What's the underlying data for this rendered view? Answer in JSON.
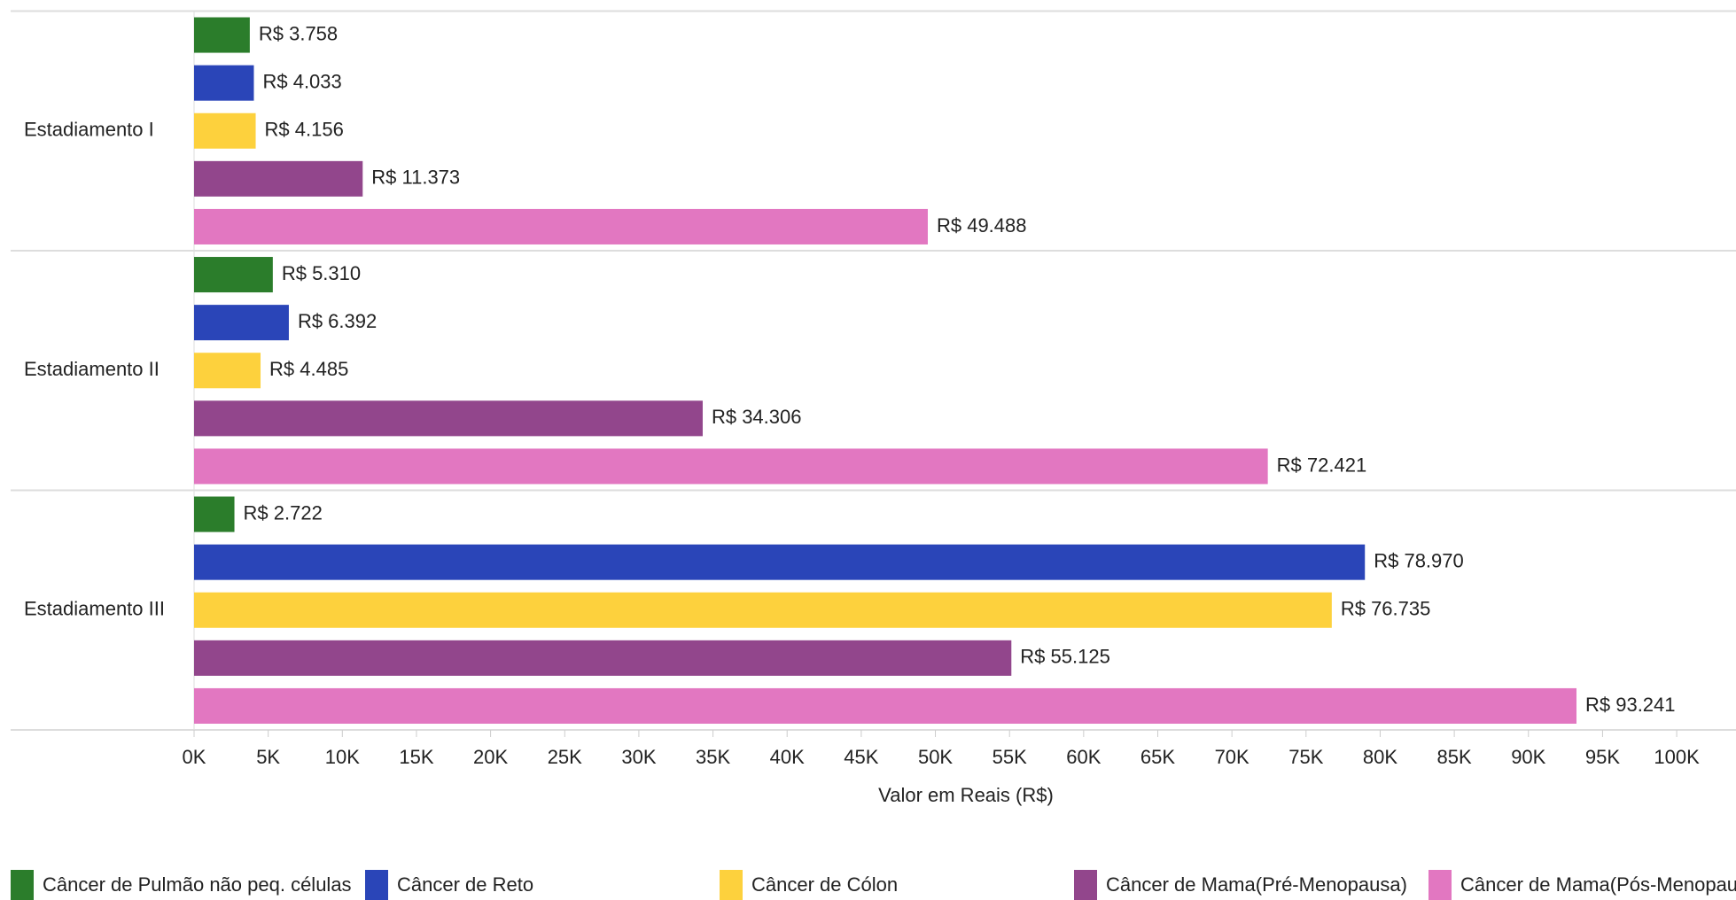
{
  "chart_data": {
    "type": "bar",
    "orientation": "horizontal",
    "categories": [
      "Estadiamento I",
      "Estadiamento II",
      "Estadiamento III"
    ],
    "series": [
      {
        "name": "Câncer de Pulmão não peq. células",
        "color": "#2b7d2b",
        "values": [
          3758,
          5310,
          2722
        ],
        "value_labels": [
          "R$ 3.758",
          "R$ 5.310",
          "R$ 2.722"
        ]
      },
      {
        "name": "Câncer de Reto",
        "color": "#2a45b8",
        "values": [
          4033,
          6392,
          78970
        ],
        "value_labels": [
          "R$ 4.033",
          "R$ 6.392",
          "R$ 78.970"
        ]
      },
      {
        "name": "Câncer de Cólon",
        "color": "#fdd13d",
        "values": [
          4156,
          4485,
          76735
        ],
        "value_labels": [
          "R$ 4.156",
          "R$ 4.485",
          "R$ 76.735"
        ]
      },
      {
        "name": "Câncer de Mama(Pré-Menopausa)",
        "color": "#92468c",
        "values": [
          11373,
          34306,
          55125
        ],
        "value_labels": [
          "R$ 11.373",
          "R$ 34.306",
          "R$ 55.125"
        ]
      },
      {
        "name": "Câncer de Mama(Pós-Menopausa)",
        "color": "#e277c1",
        "values": [
          49488,
          72421,
          93241
        ],
        "value_labels": [
          "R$ 49.488",
          "R$ 72.421",
          "R$ 93.241"
        ]
      }
    ],
    "x_label": "Valor em Reais (R$)",
    "xlim": [
      0,
      104000
    ],
    "xticks": [
      {
        "value": 0,
        "label": "0K"
      },
      {
        "value": 5000,
        "label": "5K"
      },
      {
        "value": 10000,
        "label": "10K"
      },
      {
        "value": 15000,
        "label": "15K"
      },
      {
        "value": 20000,
        "label": "20K"
      },
      {
        "value": 25000,
        "label": "25K"
      },
      {
        "value": 30000,
        "label": "30K"
      },
      {
        "value": 35000,
        "label": "35K"
      },
      {
        "value": 40000,
        "label": "40K"
      },
      {
        "value": 45000,
        "label": "45K"
      },
      {
        "value": 50000,
        "label": "50K"
      },
      {
        "value": 55000,
        "label": "55K"
      },
      {
        "value": 60000,
        "label": "60K"
      },
      {
        "value": 65000,
        "label": "65K"
      },
      {
        "value": 70000,
        "label": "70K"
      },
      {
        "value": 75000,
        "label": "75K"
      },
      {
        "value": 80000,
        "label": "80K"
      },
      {
        "value": 85000,
        "label": "85K"
      },
      {
        "value": 90000,
        "label": "90K"
      },
      {
        "value": 95000,
        "label": "95K"
      },
      {
        "value": 100000,
        "label": "100K"
      }
    ],
    "legend": "bottom"
  }
}
